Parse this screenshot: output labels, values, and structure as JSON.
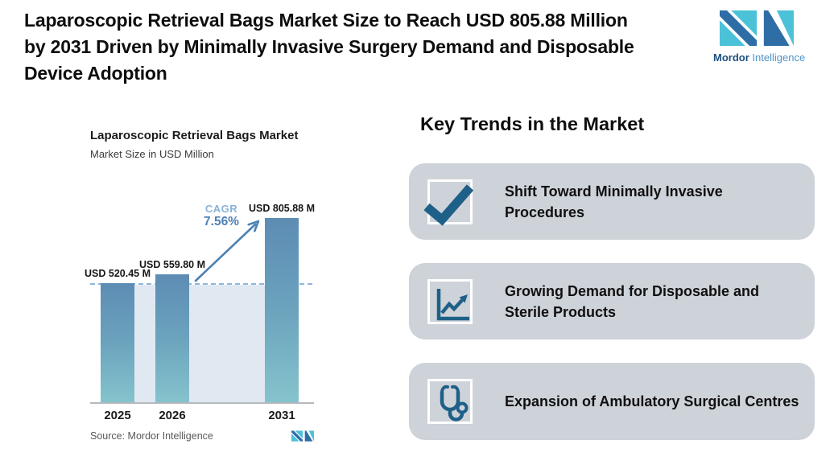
{
  "page": {
    "title_lines": [
      "Laparoscopic Retrieval Bags Market Size to Reach USD 805.88 Million",
      "by 2031 Driven by Minimally Invasive Surgery Demand and Disposable",
      "Device Adoption"
    ]
  },
  "brand": {
    "name_bold": "Mordor",
    "name_light": "Intelligence"
  },
  "chart": {
    "title": "Laparoscopic Retrieval Bags Market",
    "subtitle": "Market Size in USD Million",
    "cagr_label": "CAGR",
    "cagr_value": "7.56%",
    "source": "Source: Mordor Intelligence"
  },
  "chart_data": {
    "type": "bar",
    "title": "Laparoscopic Retrieval Bags Market",
    "ylabel": "Market Size in USD Million",
    "categories": [
      "2025",
      "2026",
      "2031"
    ],
    "values": [
      520.45,
      559.8,
      805.88
    ],
    "value_labels": [
      "USD 520.45 M",
      "USD 559.80 M",
      "USD 805.88 M"
    ],
    "ylim": [
      0,
      830
    ],
    "grid": false,
    "legend": "none",
    "annotations": {
      "cagr_label": "CAGR",
      "cagr_value": "7.56%",
      "reference_line": "dashed horizontal line at 2025 value (520.45)"
    },
    "source": "Source: Mordor Intelligence"
  },
  "key_trends": {
    "heading": "Key Trends in the Market",
    "items": [
      {
        "icon": "checkmark-icon",
        "text": "Shift Toward Minimally Invasive Procedures"
      },
      {
        "icon": "growth-chart-icon",
        "text": "Growing Demand for Disposable and Sterile Products"
      },
      {
        "icon": "stethoscope-icon",
        "text": "Expansion of Ambulatory Surgical Centres"
      }
    ]
  },
  "colors": {
    "bar_top": "#5d8cb4",
    "bar_bottom": "#85c3cd",
    "shade": "#e0e9f2",
    "dashed_line": "#8fb6da",
    "arrow": "#4c82b2",
    "card_bg": "#ced2d9",
    "icon_blue": "#1e6087",
    "logo_dark": "#2e6da6",
    "logo_teal": "#4cc2d8"
  }
}
